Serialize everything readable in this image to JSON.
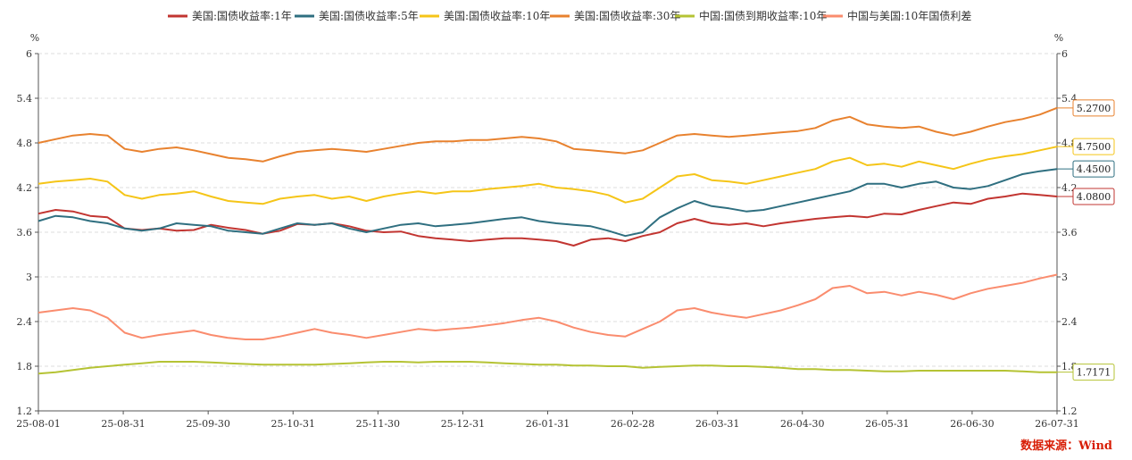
{
  "chart_data": {
    "type": "line",
    "y_unit_left": "%",
    "y_unit_right": "%",
    "ylim": [
      1.2,
      6
    ],
    "yticks": [
      "1.2",
      "1.8",
      "2.4",
      "3",
      "3.6",
      "4.2",
      "4.8",
      "5.4",
      "6"
    ],
    "x_ticks": [
      "25-08-01",
      "25-08-31",
      "25-09-30",
      "25-10-31",
      "25-11-30",
      "25-12-31",
      "26-01-31",
      "26-02-28",
      "26-03-31",
      "26-04-30",
      "26-05-31",
      "26-06-30",
      "26-07-31"
    ],
    "grid": true,
    "legend_position": "top",
    "series": [
      {
        "name": "美国:国债收益率:1年",
        "color": "#c23531",
        "end_label": "4.0800",
        "values": [
          3.85,
          3.9,
          3.88,
          3.82,
          3.8,
          3.65,
          3.63,
          3.65,
          3.62,
          3.63,
          3.7,
          3.66,
          3.63,
          3.58,
          3.62,
          3.71,
          3.7,
          3.72,
          3.68,
          3.62,
          3.6,
          3.61,
          3.55,
          3.52,
          3.5,
          3.48,
          3.5,
          3.52,
          3.52,
          3.5,
          3.48,
          3.42,
          3.5,
          3.52,
          3.48,
          3.55,
          3.6,
          3.72,
          3.78,
          3.72,
          3.7,
          3.72,
          3.68,
          3.72,
          3.75,
          3.78,
          3.8,
          3.82,
          3.8,
          3.85,
          3.84,
          3.9,
          3.95,
          4.0,
          3.98,
          4.05,
          4.08,
          4.12,
          4.1,
          4.08
        ]
      },
      {
        "name": "美国:国债收益率:5年",
        "color": "#2f6f80",
        "end_label": "4.4500",
        "values": [
          3.75,
          3.82,
          3.8,
          3.75,
          3.72,
          3.65,
          3.62,
          3.65,
          3.72,
          3.7,
          3.68,
          3.62,
          3.6,
          3.58,
          3.65,
          3.72,
          3.7,
          3.72,
          3.65,
          3.6,
          3.65,
          3.7,
          3.72,
          3.68,
          3.7,
          3.72,
          3.75,
          3.78,
          3.8,
          3.75,
          3.72,
          3.7,
          3.68,
          3.62,
          3.55,
          3.6,
          3.8,
          3.92,
          4.02,
          3.95,
          3.92,
          3.88,
          3.9,
          3.95,
          4.0,
          4.05,
          4.1,
          4.15,
          4.25,
          4.25,
          4.2,
          4.25,
          4.28,
          4.2,
          4.18,
          4.22,
          4.3,
          4.38,
          4.42,
          4.45
        ]
      },
      {
        "name": "美国:国债收益率:10年",
        "color": "#f5c518",
        "end_label": "4.7500",
        "values": [
          4.25,
          4.28,
          4.3,
          4.32,
          4.28,
          4.1,
          4.05,
          4.1,
          4.12,
          4.15,
          4.08,
          4.02,
          4.0,
          3.98,
          4.05,
          4.08,
          4.1,
          4.05,
          4.08,
          4.02,
          4.08,
          4.12,
          4.15,
          4.12,
          4.15,
          4.15,
          4.18,
          4.2,
          4.22,
          4.25,
          4.2,
          4.18,
          4.15,
          4.1,
          4.0,
          4.05,
          4.2,
          4.35,
          4.38,
          4.3,
          4.28,
          4.25,
          4.3,
          4.35,
          4.4,
          4.45,
          4.55,
          4.6,
          4.5,
          4.52,
          4.48,
          4.55,
          4.5,
          4.45,
          4.52,
          4.58,
          4.62,
          4.65,
          4.7,
          4.75
        ]
      },
      {
        "name": "美国:国债收益率:30年",
        "color": "#e8822f",
        "end_label": "5.2700",
        "values": [
          4.8,
          4.85,
          4.9,
          4.92,
          4.9,
          4.72,
          4.68,
          4.72,
          4.74,
          4.7,
          4.65,
          4.6,
          4.58,
          4.55,
          4.62,
          4.68,
          4.7,
          4.72,
          4.7,
          4.68,
          4.72,
          4.76,
          4.8,
          4.82,
          4.82,
          4.84,
          4.84,
          4.86,
          4.88,
          4.86,
          4.82,
          4.72,
          4.7,
          4.68,
          4.66,
          4.7,
          4.8,
          4.9,
          4.92,
          4.9,
          4.88,
          4.9,
          4.92,
          4.94,
          4.96,
          5.0,
          5.1,
          5.15,
          5.05,
          5.02,
          5.0,
          5.02,
          4.95,
          4.9,
          4.95,
          5.02,
          5.08,
          5.12,
          5.18,
          5.27
        ]
      },
      {
        "name": "中国:国债到期收益率:10年",
        "color": "#b5c334",
        "end_label": "1.7171",
        "values": [
          1.7,
          1.72,
          1.75,
          1.78,
          1.8,
          1.82,
          1.84,
          1.86,
          1.86,
          1.86,
          1.85,
          1.84,
          1.83,
          1.82,
          1.82,
          1.82,
          1.82,
          1.83,
          1.84,
          1.85,
          1.86,
          1.86,
          1.85,
          1.86,
          1.86,
          1.86,
          1.85,
          1.84,
          1.83,
          1.82,
          1.82,
          1.81,
          1.81,
          1.8,
          1.8,
          1.78,
          1.79,
          1.8,
          1.81,
          1.81,
          1.8,
          1.8,
          1.79,
          1.78,
          1.76,
          1.76,
          1.75,
          1.75,
          1.74,
          1.73,
          1.73,
          1.74,
          1.74,
          1.74,
          1.74,
          1.74,
          1.74,
          1.73,
          1.72,
          1.72
        ]
      },
      {
        "name": "中国与美国:10年国债利差",
        "color": "#fa8c6e",
        "end_label": "",
        "values": [
          2.52,
          2.55,
          2.58,
          2.55,
          2.45,
          2.25,
          2.18,
          2.22,
          2.25,
          2.28,
          2.22,
          2.18,
          2.16,
          2.16,
          2.2,
          2.25,
          2.3,
          2.25,
          2.22,
          2.18,
          2.22,
          2.26,
          2.3,
          2.28,
          2.3,
          2.32,
          2.35,
          2.38,
          2.42,
          2.45,
          2.4,
          2.32,
          2.26,
          2.22,
          2.2,
          2.3,
          2.4,
          2.55,
          2.58,
          2.52,
          2.48,
          2.45,
          2.5,
          2.55,
          2.62,
          2.7,
          2.85,
          2.88,
          2.78,
          2.8,
          2.75,
          2.8,
          2.76,
          2.7,
          2.78,
          2.84,
          2.88,
          2.92,
          2.98,
          3.03
        ]
      }
    ]
  },
  "source_text": "数据来源：Wind"
}
